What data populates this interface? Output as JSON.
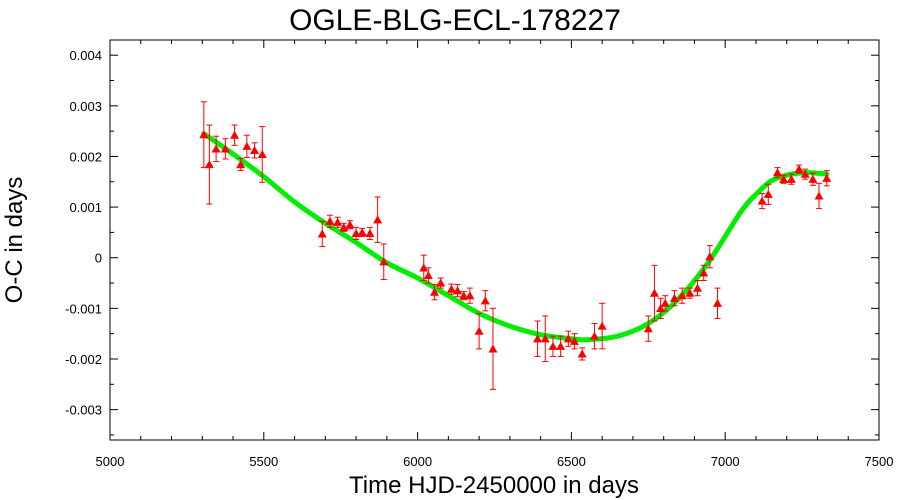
{
  "chart_data": {
    "type": "scatter",
    "title": "OGLE-BLG-ECL-178227",
    "xlabel": "Time HJD-2450000 in days",
    "ylabel": "O-C in days",
    "xlim": [
      5000,
      7500
    ],
    "ylim": [
      -0.0036,
      0.0043
    ],
    "x_ticks": [
      5000,
      5500,
      6000,
      6500,
      7000,
      7500
    ],
    "x_tick_labels": [
      "5000",
      "5500",
      "6000",
      "6500",
      "7000",
      "7500"
    ],
    "y_ticks": [
      0.004,
      0.003,
      0.002,
      0.001,
      0,
      -0.001,
      -0.002,
      -0.003
    ],
    "y_tick_labels": [
      "0.004",
      "0.003",
      "0.002",
      "0.001",
      "0",
      "-0.001",
      "-0.002",
      "-0.003"
    ],
    "grid": false,
    "colors": {
      "points": "#ff0000",
      "fit": "#00ee00",
      "axes": "#000000"
    },
    "series": [
      {
        "type": "scatter_errorbar",
        "marker": "triangle",
        "points": [
          {
            "x": 5305,
            "y": 0.00243,
            "err": 0.00065
          },
          {
            "x": 5323,
            "y": 0.00184,
            "err": 0.00078
          },
          {
            "x": 5345,
            "y": 0.00215,
            "err": 0.00025
          },
          {
            "x": 5375,
            "y": 0.00215,
            "err": 0.0002
          },
          {
            "x": 5405,
            "y": 0.00242,
            "err": 0.0002
          },
          {
            "x": 5425,
            "y": 0.00184,
            "err": 0.00012
          },
          {
            "x": 5445,
            "y": 0.0022,
            "err": 0.00022
          },
          {
            "x": 5470,
            "y": 0.00212,
            "err": 0.00015
          },
          {
            "x": 5495,
            "y": 0.00204,
            "err": 0.00055
          },
          {
            "x": 5690,
            "y": 0.00047,
            "err": 0.00025
          },
          {
            "x": 5715,
            "y": 0.00072,
            "err": 0.00012
          },
          {
            "x": 5740,
            "y": 0.0007,
            "err": 0.0001
          },
          {
            "x": 5760,
            "y": 0.0006,
            "err": 8e-05
          },
          {
            "x": 5780,
            "y": 0.00065,
            "err": 8e-05
          },
          {
            "x": 5800,
            "y": 0.00048,
            "err": 0.00012
          },
          {
            "x": 5820,
            "y": 0.0005,
            "err": 8e-05
          },
          {
            "x": 5845,
            "y": 0.00048,
            "err": 0.00012
          },
          {
            "x": 5870,
            "y": 0.00075,
            "err": 0.00045
          },
          {
            "x": 5890,
            "y": -8e-05,
            "err": 0.00035
          },
          {
            "x": 6020,
            "y": -0.0002,
            "err": 0.00025
          },
          {
            "x": 6035,
            "y": -0.00035,
            "err": 0.00015
          },
          {
            "x": 6055,
            "y": -0.00068,
            "err": 0.00015
          },
          {
            "x": 6075,
            "y": -0.0005,
            "err": 0.0001
          },
          {
            "x": 6110,
            "y": -0.00062,
            "err": 0.0001
          },
          {
            "x": 6130,
            "y": -0.00065,
            "err": 0.00012
          },
          {
            "x": 6150,
            "y": -0.00075,
            "err": 8e-05
          },
          {
            "x": 6170,
            "y": -0.00075,
            "err": 0.00015
          },
          {
            "x": 6200,
            "y": -0.00145,
            "err": 0.00035
          },
          {
            "x": 6220,
            "y": -0.00085,
            "err": 0.0002
          },
          {
            "x": 6245,
            "y": -0.0018,
            "err": 0.0008
          },
          {
            "x": 6390,
            "y": -0.0016,
            "err": 0.00035
          },
          {
            "x": 6415,
            "y": -0.0016,
            "err": 0.00045
          },
          {
            "x": 6440,
            "y": -0.00175,
            "err": 0.0002
          },
          {
            "x": 6465,
            "y": -0.00175,
            "err": 0.0002
          },
          {
            "x": 6490,
            "y": -0.0016,
            "err": 0.00015
          },
          {
            "x": 6510,
            "y": -0.00165,
            "err": 0.00015
          },
          {
            "x": 6535,
            "y": -0.0019,
            "err": 0.00012
          },
          {
            "x": 6575,
            "y": -0.00155,
            "err": 0.00025
          },
          {
            "x": 6600,
            "y": -0.00135,
            "err": 0.00045
          },
          {
            "x": 6750,
            "y": -0.0014,
            "err": 0.00025
          },
          {
            "x": 6770,
            "y": -0.0007,
            "err": 0.00055
          },
          {
            "x": 6790,
            "y": -0.001,
            "err": 0.0002
          },
          {
            "x": 6805,
            "y": -0.0009,
            "err": 0.00015
          },
          {
            "x": 6835,
            "y": -0.0008,
            "err": 0.00015
          },
          {
            "x": 6860,
            "y": -0.00075,
            "err": 0.00015
          },
          {
            "x": 6885,
            "y": -0.0007,
            "err": 0.0001
          },
          {
            "x": 6910,
            "y": -0.0006,
            "err": 0.00015
          },
          {
            "x": 6930,
            "y": -0.0003,
            "err": 0.00015
          },
          {
            "x": 6950,
            "y": 2e-05,
            "err": 0.00022
          },
          {
            "x": 6975,
            "y": -0.0009,
            "err": 0.0003
          },
          {
            "x": 7120,
            "y": 0.00112,
            "err": 0.00015
          },
          {
            "x": 7140,
            "y": 0.00125,
            "err": 0.0002
          },
          {
            "x": 7170,
            "y": 0.00168,
            "err": 0.0001
          },
          {
            "x": 7190,
            "y": 0.00155,
            "err": 8e-05
          },
          {
            "x": 7215,
            "y": 0.00155,
            "err": 0.0001
          },
          {
            "x": 7240,
            "y": 0.00175,
            "err": 8e-05
          },
          {
            "x": 7260,
            "y": 0.00165,
            "err": 0.0001
          },
          {
            "x": 7285,
            "y": 0.00155,
            "err": 0.00012
          },
          {
            "x": 7305,
            "y": 0.00122,
            "err": 0.00025
          },
          {
            "x": 7330,
            "y": 0.00157,
            "err": 0.00015
          }
        ]
      },
      {
        "type": "line",
        "points": [
          {
            "x": 5305,
            "y": 0.00245
          },
          {
            "x": 5400,
            "y": 0.00205
          },
          {
            "x": 5500,
            "y": 0.0016
          },
          {
            "x": 5600,
            "y": 0.0011
          },
          {
            "x": 5700,
            "y": 0.00068
          },
          {
            "x": 5800,
            "y": 0.0003
          },
          {
            "x": 5900,
            "y": -0.0001
          },
          {
            "x": 6000,
            "y": -0.0004
          },
          {
            "x": 6100,
            "y": -0.00075
          },
          {
            "x": 6200,
            "y": -0.0011
          },
          {
            "x": 6300,
            "y": -0.00135
          },
          {
            "x": 6400,
            "y": -0.00152
          },
          {
            "x": 6500,
            "y": -0.0016
          },
          {
            "x": 6550,
            "y": -0.00162
          },
          {
            "x": 6650,
            "y": -0.00155
          },
          {
            "x": 6750,
            "y": -0.0013
          },
          {
            "x": 6850,
            "y": -0.0008
          },
          {
            "x": 6950,
            "y": -5e-05
          },
          {
            "x": 7050,
            "y": 0.0009
          },
          {
            "x": 7100,
            "y": 0.00125
          },
          {
            "x": 7150,
            "y": 0.00152
          },
          {
            "x": 7200,
            "y": 0.00163
          },
          {
            "x": 7250,
            "y": 0.00168
          },
          {
            "x": 7300,
            "y": 0.00167
          },
          {
            "x": 7330,
            "y": 0.00165
          }
        ]
      }
    ]
  }
}
